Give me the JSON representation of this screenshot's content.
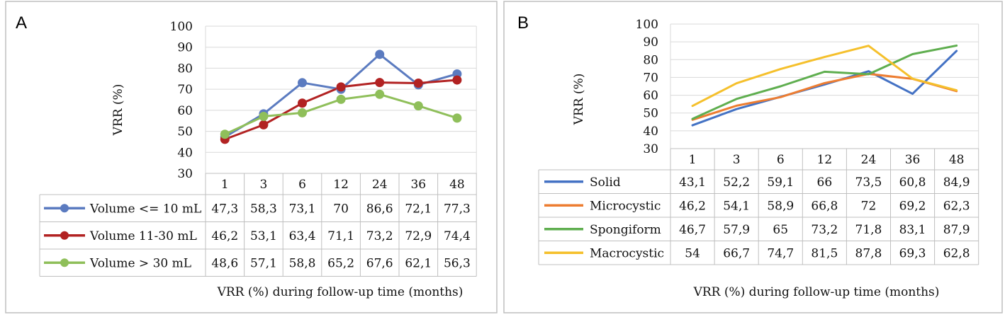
{
  "chart_data": [
    {
      "type": "line",
      "panel_label": "A",
      "title": "",
      "xlabel": "VRR (%) during follow-up time (months)",
      "ylabel": "VRR (%)",
      "ylim": [
        30,
        100
      ],
      "yticks": [
        30,
        40,
        50,
        60,
        70,
        80,
        90,
        100
      ],
      "grid": true,
      "markers": true,
      "categories": [
        "1",
        "3",
        "6",
        "12",
        "24",
        "36",
        "48"
      ],
      "series": [
        {
          "name": "Volume <= 10 mL",
          "color": "#5b7bc0",
          "values": [
            47.3,
            58.3,
            73.1,
            70,
            86.6,
            72.1,
            77.3
          ],
          "labels": [
            "47,3",
            "58,3",
            "73,1",
            "70",
            "86,6",
            "72,1",
            "77,3"
          ]
        },
        {
          "name": "Volume 11-30 mL",
          "color": "#b22222",
          "values": [
            46.2,
            53.1,
            63.4,
            71.1,
            73.2,
            72.9,
            74.4
          ],
          "labels": [
            "46,2",
            "53,1",
            "63,4",
            "71,1",
            "73,2",
            "72,9",
            "74,4"
          ]
        },
        {
          "name": "Volume > 30 mL",
          "color": "#8fbf5a",
          "values": [
            48.6,
            57.1,
            58.8,
            65.2,
            67.6,
            62.1,
            56.3
          ],
          "labels": [
            "48,6",
            "57,1",
            "58,8",
            "65,2",
            "67,6",
            "62,1",
            "56,3"
          ]
        }
      ]
    },
    {
      "type": "line",
      "panel_label": "B",
      "title": "",
      "xlabel": "VRR (%) during follow-up time (months)",
      "ylabel": "VRR (%)",
      "ylim": [
        30,
        100
      ],
      "yticks": [
        30,
        40,
        50,
        60,
        70,
        80,
        90,
        100
      ],
      "grid": true,
      "markers": false,
      "categories": [
        "1",
        "3",
        "6",
        "12",
        "24",
        "36",
        "48"
      ],
      "series": [
        {
          "name": "Solid",
          "color": "#4472c4",
          "values": [
            43.1,
            52.2,
            59.1,
            66,
            73.5,
            60.8,
            84.9
          ],
          "labels": [
            "43,1",
            "52,2",
            "59,1",
            "66",
            "73,5",
            "60,8",
            "84,9"
          ]
        },
        {
          "name": "Microcystic",
          "color": "#ed7d31",
          "values": [
            46.2,
            54.1,
            58.9,
            66.8,
            72,
            69.2,
            62.3
          ],
          "labels": [
            "46,2",
            "54,1",
            "58,9",
            "66,8",
            "72",
            "69,2",
            "62,3"
          ]
        },
        {
          "name": "Spongiform",
          "color": "#5fae4f",
          "values": [
            46.7,
            57.9,
            65,
            73.2,
            71.8,
            83.1,
            87.9
          ],
          "labels": [
            "46,7",
            "57,9",
            "65",
            "73,2",
            "71,8",
            "83,1",
            "87,9"
          ]
        },
        {
          "name": "Macrocystic",
          "color": "#f5c02c",
          "values": [
            54,
            66.7,
            74.7,
            81.5,
            87.8,
            69.3,
            62.8
          ],
          "labels": [
            "54",
            "66,7",
            "74,7",
            "81,5",
            "87,8",
            "69,3",
            "62,8"
          ]
        }
      ]
    }
  ]
}
